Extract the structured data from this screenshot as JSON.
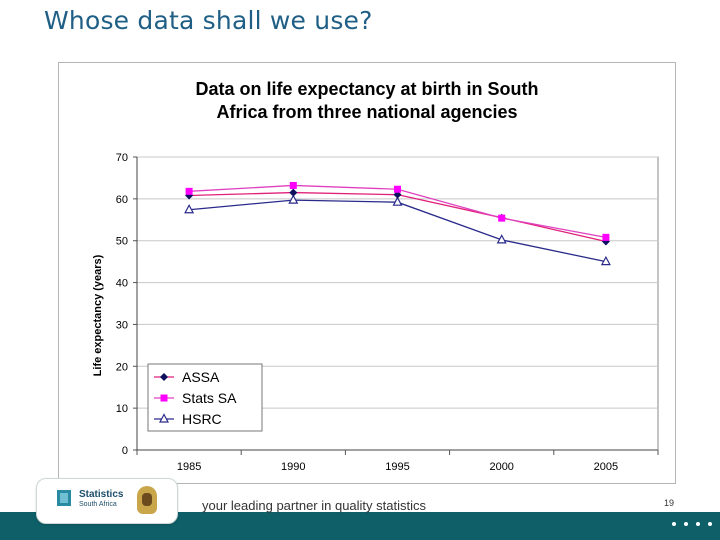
{
  "slide": {
    "title": "Whose data shall we use?",
    "tagline": "your leading partner in quality statistics",
    "page_number": "19",
    "logo": {
      "line1": "Statistics",
      "line2": "South Africa"
    }
  },
  "chart_data": {
    "type": "line",
    "title_lines": [
      "Data on life expectancy at birth in South",
      "Africa from three national agencies"
    ],
    "xlabel": "",
    "ylabel": "Life expectancy (years)",
    "categories": [
      "1985",
      "1990",
      "1995",
      "2000",
      "2005"
    ],
    "yticks": [
      "0",
      "10",
      "20",
      "30",
      "40",
      "50",
      "60",
      "70"
    ],
    "ylim": [
      0,
      70
    ],
    "grid": true,
    "legend": "bottom-left",
    "series": [
      {
        "name": "ASSA",
        "values": [
          60.8,
          61.5,
          61.0,
          55.5,
          49.8
        ],
        "color": "#e0207a",
        "marker": "diamond",
        "marker_color": "#101060"
      },
      {
        "name": "Stats SA",
        "values": [
          61.8,
          63.2,
          62.3,
          55.4,
          50.8
        ],
        "color": "#e040c0",
        "marker": "square",
        "marker_color": "#ff00ff"
      },
      {
        "name": "HSRC",
        "values": [
          57.4,
          59.7,
          59.2,
          50.2,
          45.0
        ],
        "color": "#2a2a8a",
        "marker": "triangle",
        "marker_color": "#2a2a8a"
      }
    ]
  }
}
